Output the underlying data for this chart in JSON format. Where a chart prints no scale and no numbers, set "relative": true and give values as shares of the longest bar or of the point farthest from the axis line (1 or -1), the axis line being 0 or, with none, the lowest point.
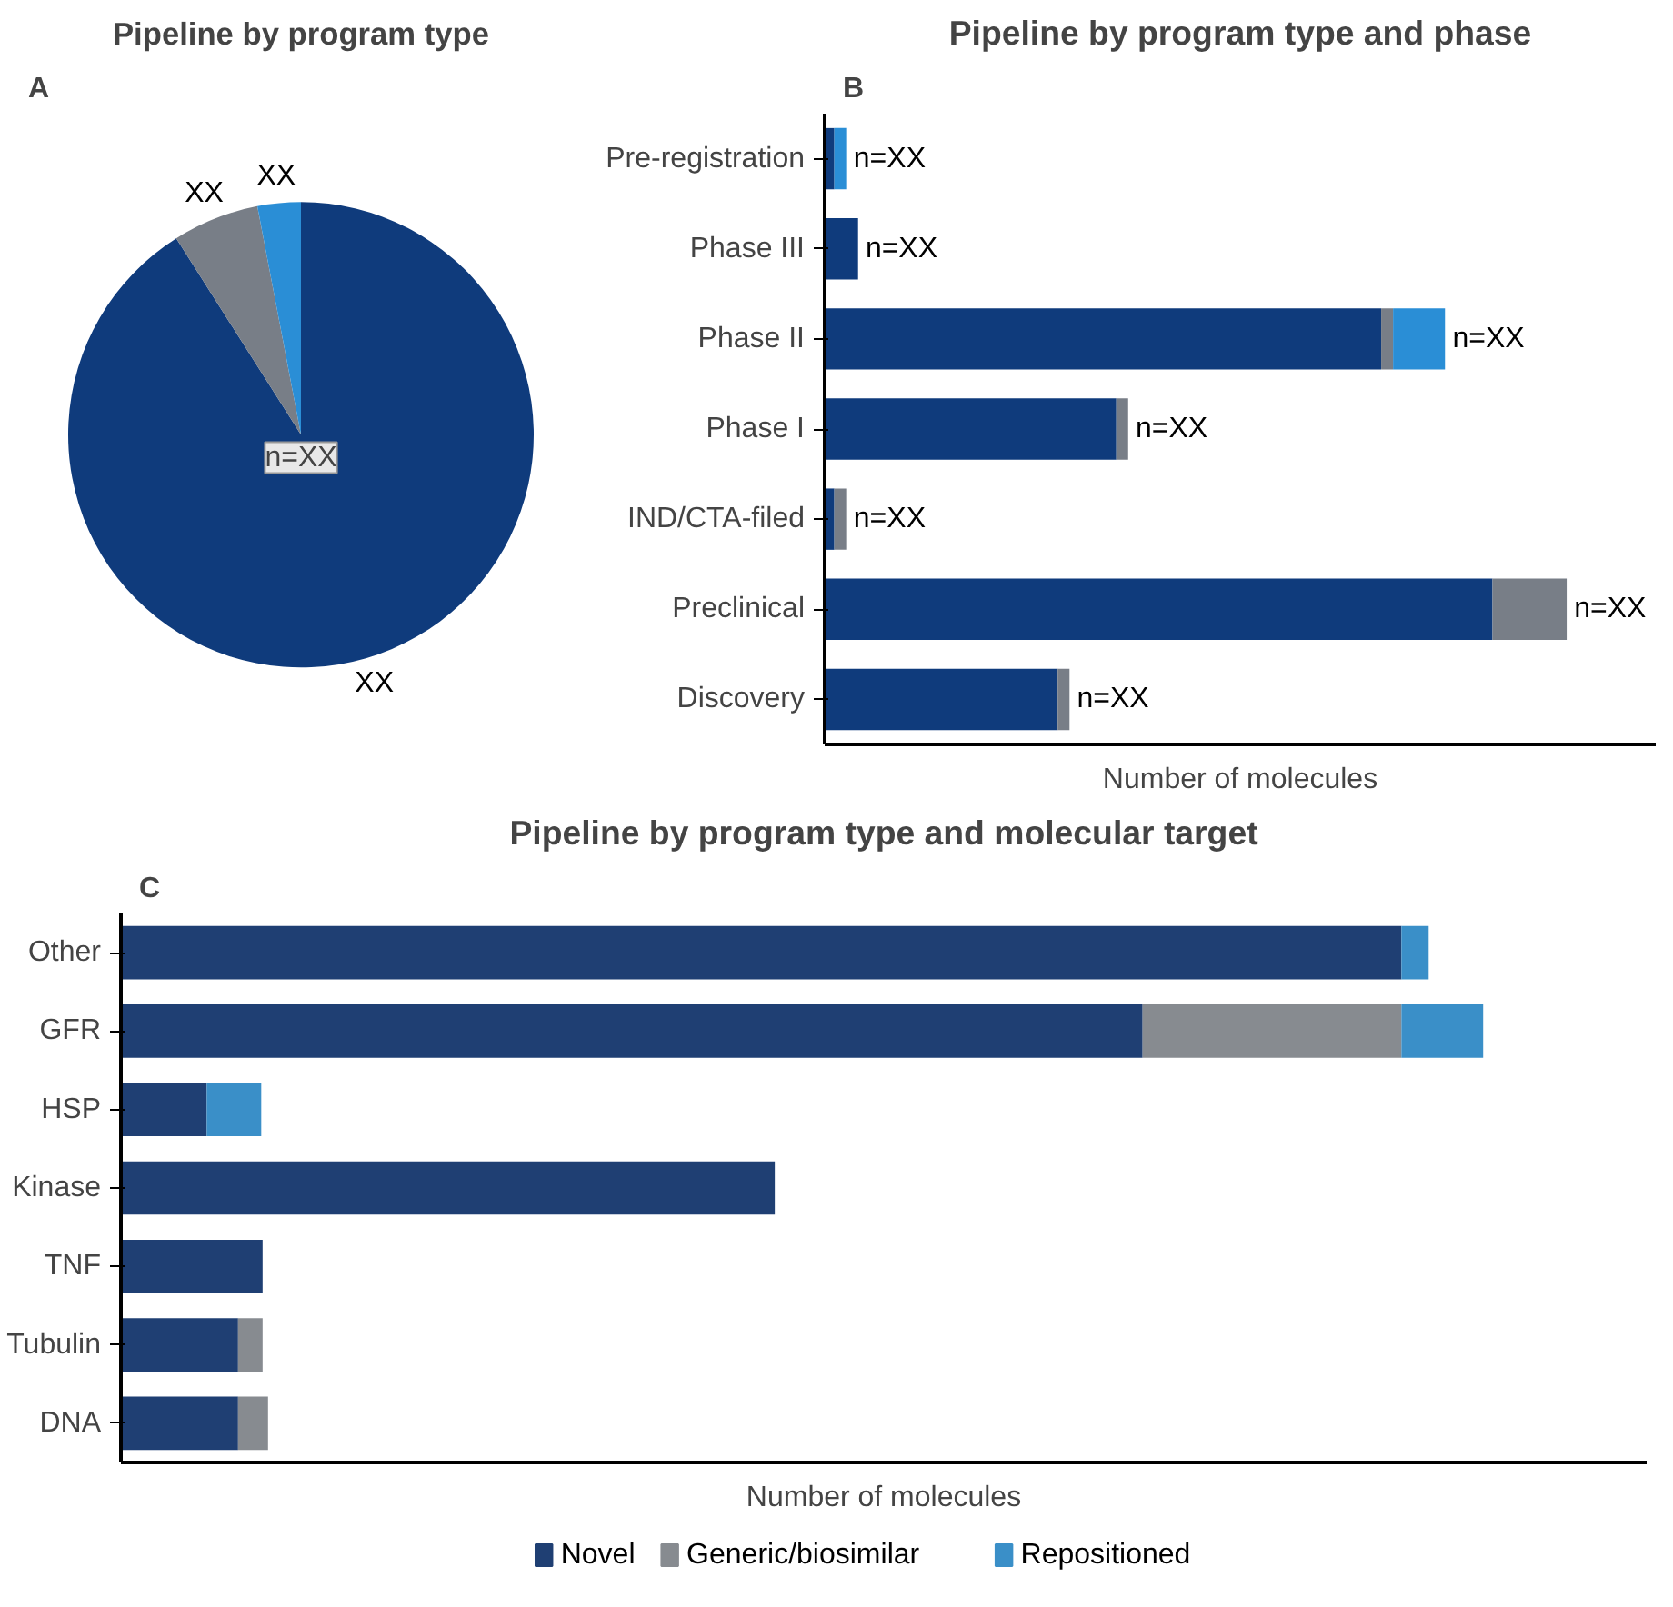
{
  "chart_data": [
    {
      "type": "pie",
      "title": "Pipeline by program type",
      "annotations": [
        "A",
        "n=XX"
      ],
      "categories": [
        null,
        null,
        null
      ],
      "values": [
        91,
        6,
        3
      ],
      "colors": [
        "#0f3b7c",
        "#787e87",
        "#2a8ed6"
      ],
      "value_labels": [
        "XX",
        "XX",
        "XX"
      ]
    },
    {
      "type": "bar",
      "orientation": "horizontal",
      "stacked": true,
      "relative": true,
      "title": "Pipeline by program type and phase",
      "annotations": [
        "B"
      ],
      "xlabel": "Number of molecules",
      "tick_labels": "y",
      "categories": [
        "Pre-registration",
        "Phase III",
        "Phase II",
        "Phase I",
        "IND/CTA-filed",
        "Preclinical",
        "Discovery"
      ],
      "series": [
        {
          "color": "#0f3b7c",
          "values": [
            0.013,
            0.045,
            0.75,
            0.393,
            0.013,
            0.9,
            0.314
          ]
        },
        {
          "color": "#787e87",
          "values": [
            null,
            null,
            0.016,
            0.016,
            0.016,
            0.1,
            0.016
          ]
        },
        {
          "color": "#2a8ed6",
          "values": [
            0.016,
            null,
            0.07,
            null,
            null,
            null,
            null
          ]
        }
      ],
      "totals": [
        "n=XX",
        "n=XX",
        "n=XX",
        "n=XX",
        "n=XX",
        "n=XX",
        "n=XX"
      ]
    },
    {
      "type": "bar",
      "orientation": "horizontal",
      "stacked": true,
      "relative": true,
      "title": "Pipeline by program type and molecular target",
      "annotations": [
        "C"
      ],
      "xlabel": "Number of molecules",
      "tick_labels": "y",
      "legend": "bottom",
      "categories": [
        "Other",
        "GFR",
        "HSP",
        "Kinase",
        "TNF",
        "Tubulin",
        "DNA"
      ],
      "series": [
        {
          "name": "Novel",
          "color": "#1f3f73",
          "values": [
            0.94,
            0.75,
            0.063,
            0.48,
            0.104,
            0.086,
            0.086
          ]
        },
        {
          "name": "Generic/biosimilar",
          "color": "#878b90",
          "values": [
            null,
            0.19,
            null,
            null,
            null,
            0.018,
            0.022
          ]
        },
        {
          "name": "Repositioned",
          "color": "#3a8fc8",
          "values": [
            0.02,
            0.06,
            0.04,
            null,
            null,
            null,
            null
          ]
        }
      ]
    }
  ]
}
